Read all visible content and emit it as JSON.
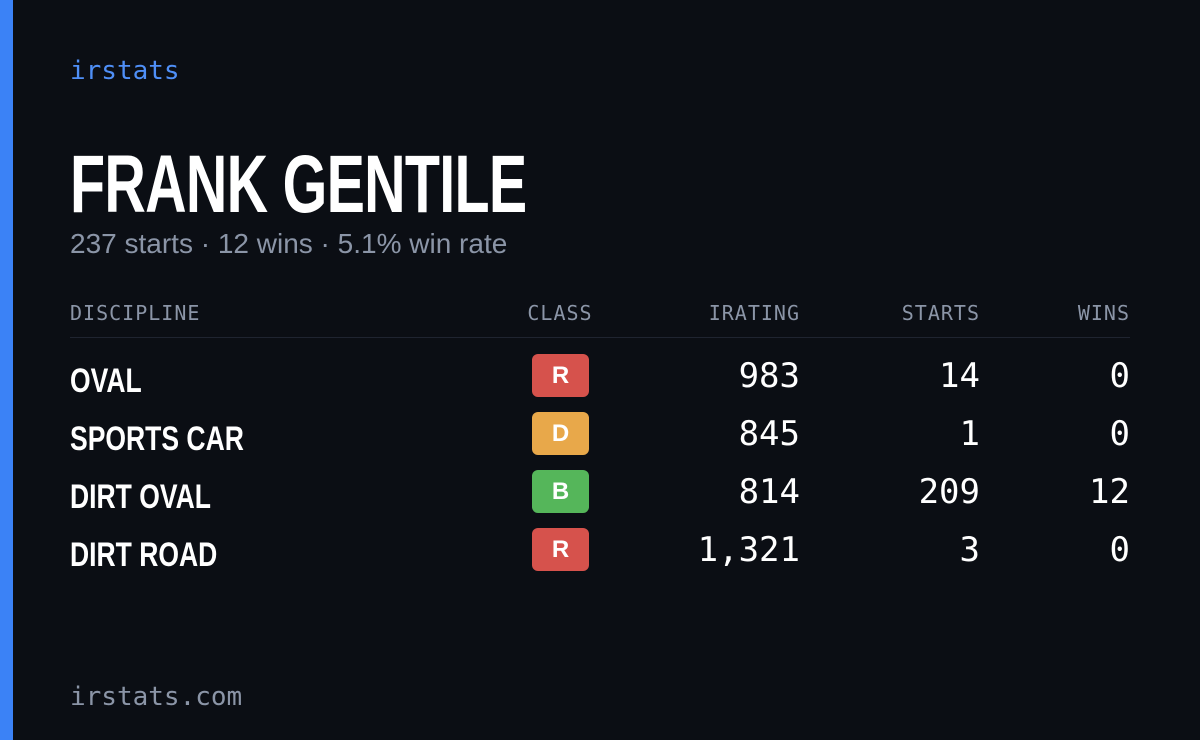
{
  "header": {
    "brand": "irstats",
    "name": "FRANK GENTILE",
    "summary": "237 starts · 12 wins · 5.1% win rate"
  },
  "table": {
    "columns": [
      "DISCIPLINE",
      "CLASS",
      "IRATING",
      "STARTS",
      "WINS"
    ],
    "rows": [
      {
        "discipline": "OVAL",
        "class": "R",
        "class_color": "#d6524c",
        "irating": "983",
        "starts": "14",
        "wins": "0"
      },
      {
        "discipline": "SPORTS CAR",
        "class": "D",
        "class_color": "#e8a84a",
        "irating": "845",
        "starts": "1",
        "wins": "0"
      },
      {
        "discipline": "DIRT OVAL",
        "class": "B",
        "class_color": "#55b65a",
        "irating": "814",
        "starts": "209",
        "wins": "12"
      },
      {
        "discipline": "DIRT ROAD",
        "class": "R",
        "class_color": "#d6524c",
        "irating": "1,321",
        "starts": "3",
        "wins": "0"
      }
    ]
  },
  "footer": "irstats.com"
}
